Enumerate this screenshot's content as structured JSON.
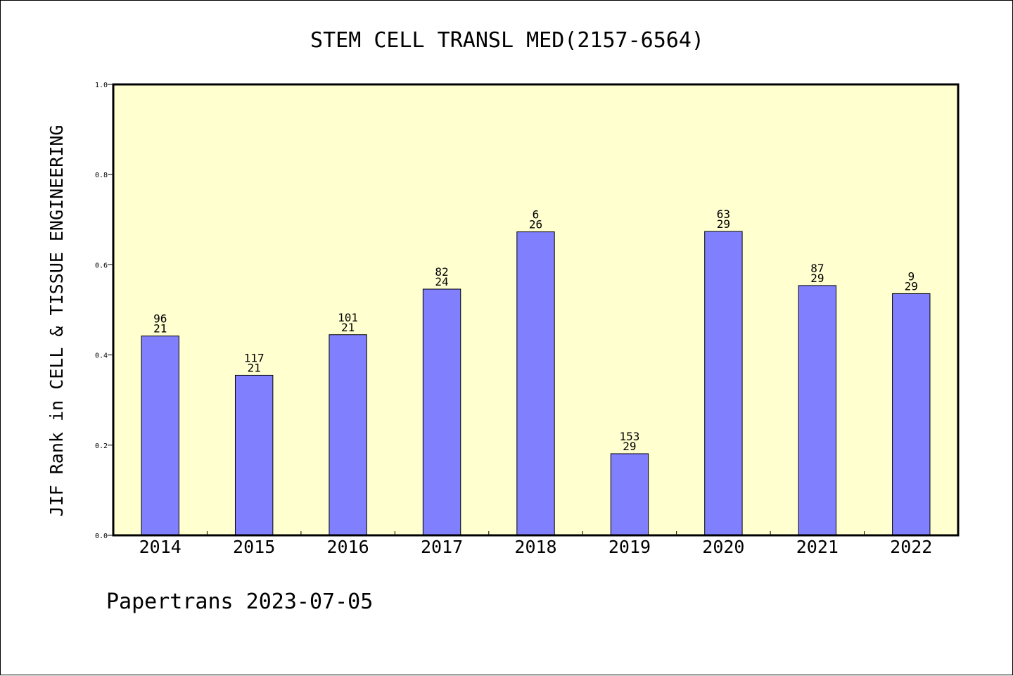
{
  "chart_data": {
    "type": "bar",
    "title": "STEM CELL TRANSL MED(2157-6564)",
    "xlabel": "",
    "ylabel": "JIF Rank in CELL & TISSUE ENGINEERING",
    "categories": [
      "2014",
      "2015",
      "2016",
      "2017",
      "2018",
      "2019",
      "2020",
      "2021",
      "2022"
    ],
    "values": [
      0.442,
      0.355,
      0.445,
      0.546,
      0.673,
      0.181,
      0.674,
      0.554,
      0.536
    ],
    "annotations": [
      {
        "top": "96",
        "bottom": "21"
      },
      {
        "top": "117",
        "bottom": "21"
      },
      {
        "top": "101",
        "bottom": "21"
      },
      {
        "top": "82",
        "bottom": "24"
      },
      {
        "top": "6",
        "bottom": "26"
      },
      {
        "top": "153",
        "bottom": "29"
      },
      {
        "top": "63",
        "bottom": "29"
      },
      {
        "top": "87",
        "bottom": "29"
      },
      {
        "top": "9",
        "bottom": "29"
      }
    ],
    "ylim": [
      0.0,
      1.0
    ],
    "yticks": [
      "0.0",
      "0.2",
      "0.4",
      "0.6",
      "0.8",
      "1.0"
    ],
    "grid": false,
    "colors": {
      "bar": "#8080ff",
      "plot_background": "#ffffd0"
    }
  },
  "footer": "Papertrans 2023-07-05"
}
